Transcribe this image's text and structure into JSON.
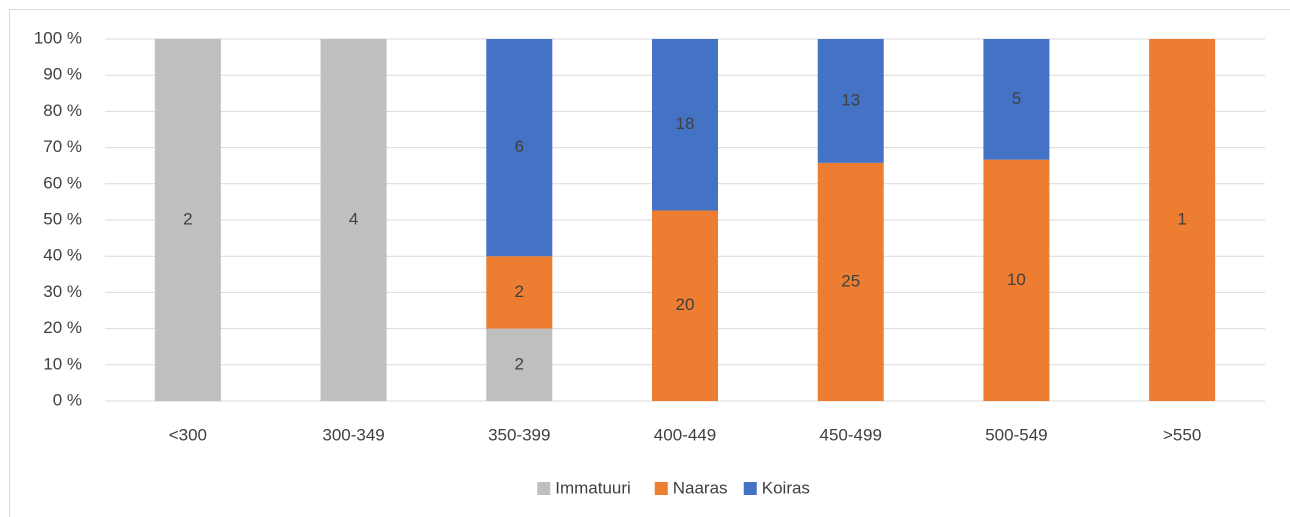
{
  "chart_data": {
    "type": "bar",
    "stacking": "percent",
    "categories": [
      "<300",
      "300-349",
      "350-399",
      "400-449",
      "450-499",
      "500-549",
      ">550"
    ],
    "series": [
      {
        "name": "Immatuuri",
        "color": "#bfbfbf",
        "values": [
          2,
          4,
          2,
          null,
          null,
          null,
          null
        ]
      },
      {
        "name": "Naaras",
        "color": "#ed7d31",
        "values": [
          null,
          null,
          2,
          20,
          25,
          10,
          1
        ]
      },
      {
        "name": "Koiras",
        "color": "#4472c4",
        "values": [
          null,
          null,
          6,
          18,
          13,
          5,
          null
        ]
      }
    ],
    "ylim": [
      0,
      100
    ],
    "yticks": [
      {
        "value": 0,
        "label": "0 %"
      },
      {
        "value": 10,
        "label": "10 %"
      },
      {
        "value": 20,
        "label": "20 %"
      },
      {
        "value": 30,
        "label": "30 %"
      },
      {
        "value": 40,
        "label": "40 %"
      },
      {
        "value": 50,
        "label": "50 %"
      },
      {
        "value": 60,
        "label": "60 %"
      },
      {
        "value": 70,
        "label": "70 %"
      },
      {
        "value": 80,
        "label": "80 %"
      },
      {
        "value": 90,
        "label": "90 %"
      },
      {
        "value": 100,
        "label": "100 %"
      }
    ],
    "grid": true,
    "legend": "bottom"
  }
}
